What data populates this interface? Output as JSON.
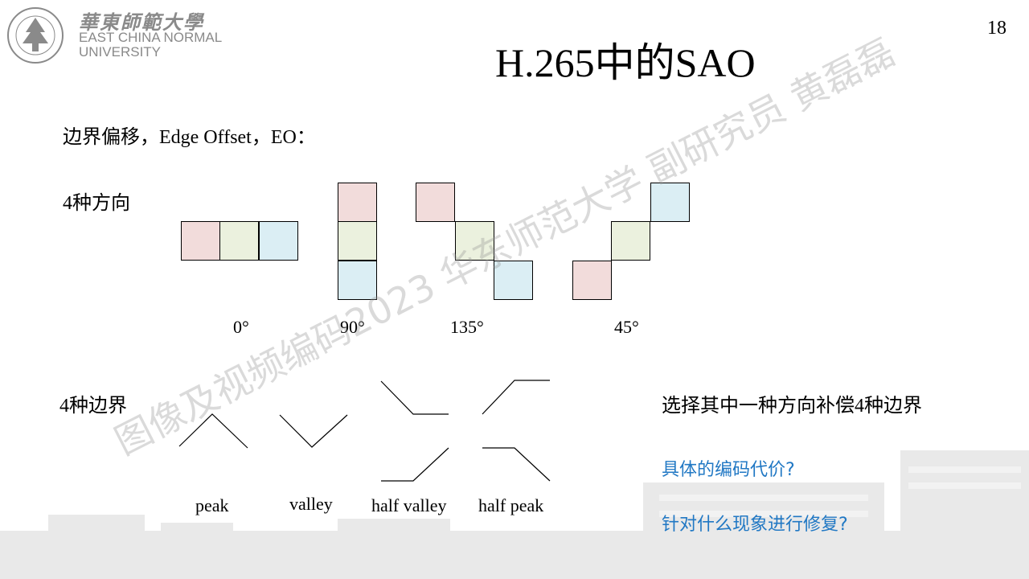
{
  "header": {
    "logo_cn": "華東師範大學",
    "logo_en_line1": "EAST CHINA NORMAL",
    "logo_en_line2": "UNIVERSITY",
    "page_number": "18"
  },
  "slide": {
    "title": "H.265中的SAO",
    "subtitle": "边界偏移，Edge Offset，EO：",
    "directions_label": "4种方向",
    "direction_angles": [
      "0°",
      "90°",
      "135°",
      "45°"
    ],
    "edges_label": "4种边界",
    "edge_types": [
      "peak",
      "valley",
      "half valley",
      "half peak"
    ],
    "note": "选择其中一种方向补偿4种边界",
    "question1": "具体的编码代价?",
    "question2": "针对什么现象进行修复?"
  },
  "watermark": "图像及视频编码2023 华东师范大学 副研究员 黄磊磊",
  "colors": {
    "pink": "#f2dcdb",
    "green": "#ebf1de",
    "blue": "#dbeef4",
    "accent": "#2178c4"
  }
}
